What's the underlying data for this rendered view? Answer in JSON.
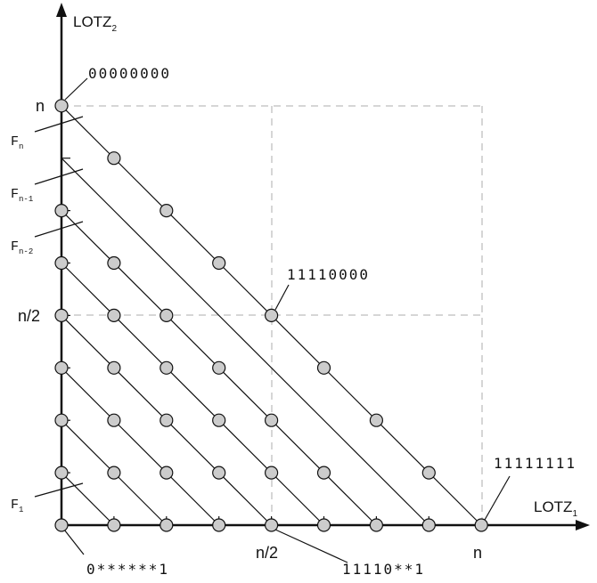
{
  "axes": {
    "x_label": "LOTZ",
    "x_sub": "1",
    "y_label": "LOTZ",
    "y_sub": "2",
    "x_ticks": [
      "n/2",
      "n"
    ],
    "y_ticks": [
      "n",
      "n/2"
    ]
  },
  "fronts": [
    {
      "label": "F",
      "sub": "n"
    },
    {
      "label": "F",
      "sub": "n-1"
    },
    {
      "label": "F",
      "sub": "n-2"
    },
    {
      "label": "F",
      "sub": "1"
    }
  ],
  "annotations": {
    "top": "00000000",
    "middle": "11110000",
    "right": "11111111",
    "bottom_left": "0******1",
    "bottom_mid": "11110**1"
  },
  "colors": {
    "point_fill": "#cccccc",
    "grid_dash": "#c8c8c8",
    "line": "#111111"
  }
}
